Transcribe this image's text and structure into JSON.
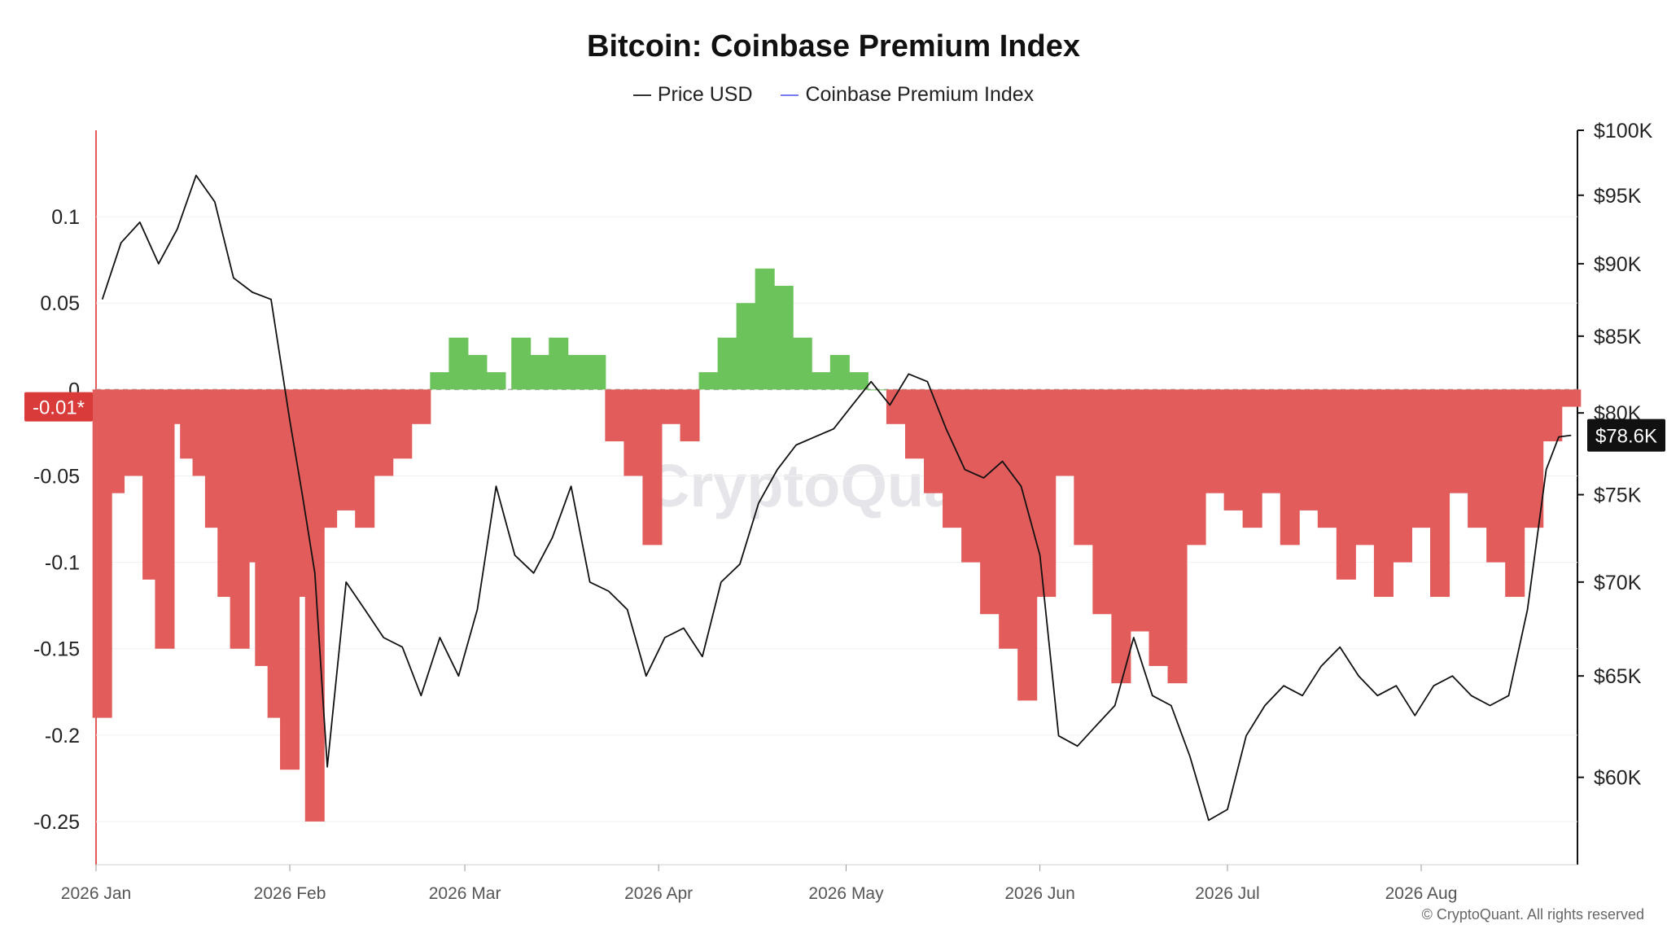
{
  "title": "Bitcoin: Coinbase Premium Index",
  "legend": [
    {
      "label": "Price USD",
      "color": "#333333"
    },
    {
      "label": "Coinbase Premium Index",
      "color": "#7b7bf0"
    }
  ],
  "watermark": "CryptoQuant",
  "copyright": "© CryptoQuant. All rights reserved",
  "chart_data": {
    "type": "line",
    "x_start": "2026-01-01",
    "x_end": "2026-08-26",
    "x_ticks": [
      {
        "date": "2026-01-01",
        "label": "2026 Jan"
      },
      {
        "date": "2026-02-01",
        "label": "2026 Feb"
      },
      {
        "date": "2026-03-01",
        "label": "2026 Mar"
      },
      {
        "date": "2026-04-01",
        "label": "2026 Apr"
      },
      {
        "date": "2026-05-01",
        "label": "2026 May"
      },
      {
        "date": "2026-06-01",
        "label": "2026 Jun"
      },
      {
        "date": "2026-07-01",
        "label": "2026 Jul"
      },
      {
        "date": "2026-08-01",
        "label": "2026 Aug"
      }
    ],
    "left_axis": {
      "ylim": [
        -0.275,
        0.15
      ],
      "ticks": [
        0.1,
        0.05,
        0,
        -0.05,
        -0.1,
        -0.15,
        -0.2,
        -0.25
      ],
      "tick_labels": [
        "0.1",
        "0.05",
        "0",
        "-0.05",
        "-0.1",
        "-0.15",
        "-0.2",
        "-0.25"
      ]
    },
    "right_axis": {
      "scale": "log",
      "ylim": [
        56000,
        100000
      ],
      "ticks": [
        100000,
        95000,
        90000,
        85000,
        80000,
        75000,
        70000,
        65000,
        60000
      ],
      "tick_labels": [
        "$100K",
        "$95K",
        "$90K",
        "$85K",
        "$80K",
        "$75K",
        "$70K",
        "$65K",
        "$60K"
      ]
    },
    "zero_line": "dashed",
    "current_premium_label": "-0.01*",
    "current_price_label": "$78.6K",
    "positive_color": "#6cc35c",
    "negative_color": "#e25c5c",
    "series": [
      {
        "name": "Coinbase Premium Index",
        "axis": "left",
        "x": [
          "2026-01-02",
          "2026-01-04",
          "2026-01-07",
          "2026-01-10",
          "2026-01-12",
          "2026-01-14",
          "2026-01-16",
          "2026-01-18",
          "2026-01-20",
          "2026-01-22",
          "2026-01-24",
          "2026-01-26",
          "2026-01-28",
          "2026-01-30",
          "2026-02-01",
          "2026-02-03",
          "2026-02-05",
          "2026-02-07",
          "2026-02-10",
          "2026-02-13",
          "2026-02-16",
          "2026-02-19",
          "2026-02-22",
          "2026-02-25",
          "2026-02-28",
          "2026-03-03",
          "2026-03-06",
          "2026-03-10",
          "2026-03-13",
          "2026-03-16",
          "2026-03-19",
          "2026-03-22",
          "2026-03-25",
          "2026-03-28",
          "2026-03-31",
          "2026-04-03",
          "2026-04-06",
          "2026-04-09",
          "2026-04-12",
          "2026-04-15",
          "2026-04-18",
          "2026-04-21",
          "2026-04-24",
          "2026-04-27",
          "2026-04-30",
          "2026-05-03",
          "2026-05-06",
          "2026-05-09",
          "2026-05-12",
          "2026-05-15",
          "2026-05-18",
          "2026-05-21",
          "2026-05-24",
          "2026-05-27",
          "2026-05-30",
          "2026-06-02",
          "2026-06-05",
          "2026-06-08",
          "2026-06-11",
          "2026-06-14",
          "2026-06-17",
          "2026-06-20",
          "2026-06-23",
          "2026-06-26",
          "2026-06-29",
          "2026-07-02",
          "2026-07-05",
          "2026-07-08",
          "2026-07-11",
          "2026-07-14",
          "2026-07-17",
          "2026-07-20",
          "2026-07-23",
          "2026-07-26",
          "2026-07-29",
          "2026-08-01",
          "2026-08-04",
          "2026-08-07",
          "2026-08-10",
          "2026-08-13",
          "2026-08-16",
          "2026-08-19",
          "2026-08-22",
          "2026-08-25"
        ],
        "values": [
          -0.19,
          -0.06,
          -0.05,
          -0.11,
          -0.15,
          -0.02,
          -0.04,
          -0.05,
          -0.08,
          -0.12,
          -0.15,
          -0.1,
          -0.16,
          -0.19,
          -0.22,
          -0.12,
          -0.25,
          -0.08,
          -0.07,
          -0.08,
          -0.05,
          -0.04,
          -0.02,
          0.01,
          0.03,
          0.02,
          0.01,
          0.03,
          0.02,
          0.03,
          0.02,
          0.02,
          -0.03,
          -0.05,
          -0.09,
          -0.02,
          -0.03,
          0.01,
          0.03,
          0.05,
          0.07,
          0.06,
          0.03,
          0.01,
          0.02,
          0.01,
          0.0,
          -0.02,
          -0.04,
          -0.06,
          -0.08,
          -0.1,
          -0.13,
          -0.15,
          -0.18,
          -0.12,
          -0.05,
          -0.09,
          -0.13,
          -0.17,
          -0.14,
          -0.16,
          -0.17,
          -0.09,
          -0.06,
          -0.07,
          -0.08,
          -0.06,
          -0.09,
          -0.07,
          -0.08,
          -0.11,
          -0.09,
          -0.12,
          -0.1,
          -0.08,
          -0.12,
          -0.06,
          -0.08,
          -0.1,
          -0.12,
          -0.08,
          -0.03,
          -0.01
        ]
      },
      {
        "name": "Price USD",
        "axis": "right",
        "x": [
          "2026-01-02",
          "2026-01-05",
          "2026-01-08",
          "2026-01-11",
          "2026-01-14",
          "2026-01-17",
          "2026-01-20",
          "2026-01-23",
          "2026-01-26",
          "2026-01-29",
          "2026-02-01",
          "2026-02-03",
          "2026-02-05",
          "2026-02-07",
          "2026-02-10",
          "2026-02-13",
          "2026-02-16",
          "2026-02-19",
          "2026-02-22",
          "2026-02-25",
          "2026-02-28",
          "2026-03-03",
          "2026-03-06",
          "2026-03-09",
          "2026-03-12",
          "2026-03-15",
          "2026-03-18",
          "2026-03-21",
          "2026-03-24",
          "2026-03-27",
          "2026-03-30",
          "2026-04-02",
          "2026-04-05",
          "2026-04-08",
          "2026-04-11",
          "2026-04-14",
          "2026-04-17",
          "2026-04-20",
          "2026-04-23",
          "2026-04-26",
          "2026-04-29",
          "2026-05-02",
          "2026-05-05",
          "2026-05-08",
          "2026-05-11",
          "2026-05-14",
          "2026-05-17",
          "2026-05-20",
          "2026-05-23",
          "2026-05-26",
          "2026-05-29",
          "2026-06-01",
          "2026-06-04",
          "2026-06-07",
          "2026-06-10",
          "2026-06-13",
          "2026-06-16",
          "2026-06-19",
          "2026-06-22",
          "2026-06-25",
          "2026-06-28",
          "2026-07-01",
          "2026-07-04",
          "2026-07-07",
          "2026-07-10",
          "2026-07-13",
          "2026-07-16",
          "2026-07-19",
          "2026-07-22",
          "2026-07-25",
          "2026-07-28",
          "2026-07-31",
          "2026-08-03",
          "2026-08-06",
          "2026-08-09",
          "2026-08-12",
          "2026-08-15",
          "2026-08-18",
          "2026-08-21",
          "2026-08-23",
          "2026-08-25"
        ],
        "values": [
          87500,
          91500,
          93000,
          90000,
          92500,
          96500,
          94500,
          89000,
          88000,
          87500,
          79500,
          75000,
          70500,
          60500,
          70000,
          68500,
          67000,
          66500,
          64000,
          67000,
          65000,
          68500,
          75500,
          71500,
          70500,
          72500,
          75500,
          70000,
          69500,
          68500,
          65000,
          67000,
          67500,
          66000,
          70000,
          71000,
          74500,
          76500,
          78000,
          78500,
          79000,
          80500,
          82000,
          80500,
          82500,
          82000,
          79000,
          76500,
          76000,
          77000,
          75500,
          71500,
          62000,
          61500,
          62500,
          63500,
          67000,
          64000,
          63500,
          61000,
          58000,
          58500,
          62000,
          63500,
          64500,
          64000,
          65500,
          66500,
          65000,
          64000,
          64500,
          63000,
          64500,
          65000,
          64000,
          63500,
          64000,
          68500,
          76500,
          78500,
          78600
        ]
      }
    ]
  }
}
